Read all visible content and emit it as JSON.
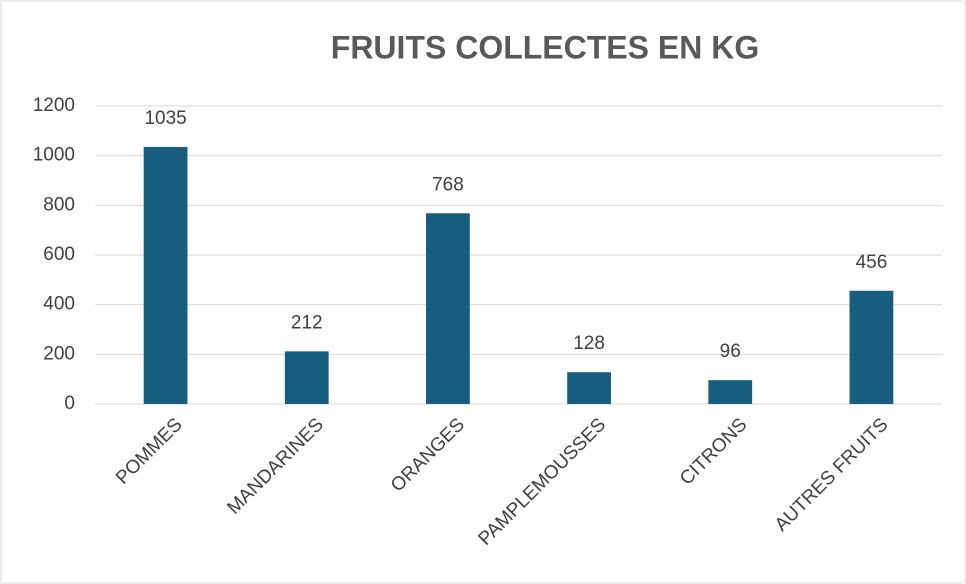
{
  "chart_data": {
    "type": "bar",
    "title": "FRUITS COLLECTES EN KG",
    "categories": [
      "POMMES",
      "MANDARINES",
      "ORANGES",
      "PAMPLEMOUSSES",
      "CITRONS",
      "AUTRES FRUITS"
    ],
    "values": [
      1035,
      212,
      768,
      128,
      96,
      456
    ],
    "color": "#175d7f",
    "ylim": [
      0,
      1200
    ],
    "yticks": [
      0,
      200,
      400,
      600,
      800,
      1000,
      1200
    ],
    "grid": true
  }
}
